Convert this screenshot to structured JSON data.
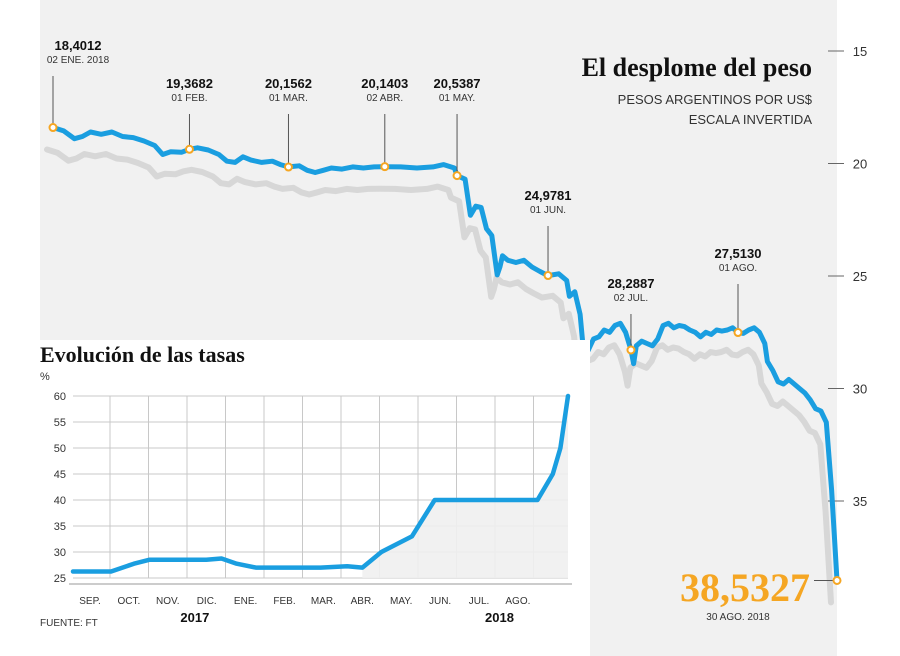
{
  "main_chart": {
    "title": "El desplome del peso",
    "subtitle_line1": "PESOS ARGENTINOS POR US$",
    "subtitle_line2": "ESCALA INVERTIDA",
    "y_axis": {
      "min": 13,
      "max": 39,
      "inverted": true,
      "ticks": [
        15,
        20,
        25,
        30,
        35
      ]
    },
    "colors": {
      "line": "#1a9ee0",
      "shadow": "#d7d7d7",
      "marker": "#f5a623",
      "final_value": "#f5a623",
      "panel_bg": "#f1f1f1"
    },
    "series": [
      [
        0,
        18.4
      ],
      [
        4,
        18.55
      ],
      [
        8,
        18.9
      ],
      [
        11,
        18.8
      ],
      [
        14,
        18.6
      ],
      [
        18,
        18.7
      ],
      [
        22,
        18.6
      ],
      [
        26,
        18.8
      ],
      [
        30,
        18.85
      ],
      [
        34,
        19.0
      ],
      [
        38,
        19.2
      ],
      [
        41,
        19.6
      ],
      [
        44,
        19.48
      ],
      [
        48,
        19.5
      ],
      [
        51,
        19.37
      ],
      [
        54,
        19.3
      ],
      [
        58,
        19.4
      ],
      [
        62,
        19.6
      ],
      [
        65,
        19.9
      ],
      [
        68,
        19.95
      ],
      [
        71,
        19.7
      ],
      [
        74,
        19.85
      ],
      [
        78,
        19.95
      ],
      [
        82,
        19.9
      ],
      [
        85,
        20.05
      ],
      [
        88,
        20.15
      ],
      [
        92,
        20.1
      ],
      [
        95,
        20.3
      ],
      [
        98,
        20.4
      ],
      [
        101,
        20.3
      ],
      [
        104,
        20.2
      ],
      [
        108,
        20.25
      ],
      [
        112,
        20.15
      ],
      [
        116,
        20.2
      ],
      [
        120,
        20.15
      ],
      [
        124,
        20.14
      ],
      [
        130,
        20.15
      ],
      [
        136,
        20.2
      ],
      [
        142,
        20.15
      ],
      [
        146,
        20.05
      ],
      [
        150,
        20.2
      ],
      [
        151,
        20.54
      ],
      [
        154,
        20.7
      ],
      [
        156,
        22.3
      ],
      [
        158,
        21.9
      ],
      [
        160,
        21.95
      ],
      [
        162,
        22.9
      ],
      [
        164,
        23.2
      ],
      [
        166,
        24.95
      ],
      [
        167,
        24.6
      ],
      [
        168,
        24.1
      ],
      [
        170,
        24.3
      ],
      [
        173,
        24.4
      ],
      [
        176,
        24.3
      ],
      [
        179,
        24.6
      ],
      [
        182,
        24.8
      ],
      [
        185,
        24.98
      ],
      [
        189,
        24.9
      ],
      [
        192,
        25.2
      ],
      [
        193,
        25.9
      ],
      [
        195,
        25.7
      ],
      [
        197,
        26.7
      ],
      [
        198,
        28.0
      ],
      [
        200,
        28.3
      ],
      [
        202,
        27.8
      ],
      [
        204,
        27.7
      ],
      [
        206,
        27.4
      ],
      [
        208,
        27.5
      ],
      [
        210,
        27.2
      ],
      [
        212,
        27.1
      ],
      [
        214,
        27.5
      ],
      [
        216,
        28.29
      ],
      [
        217,
        28.9
      ],
      [
        218,
        28.1
      ],
      [
        220,
        27.9
      ],
      [
        222,
        28.0
      ],
      [
        224,
        28.1
      ],
      [
        226,
        27.8
      ],
      [
        228,
        27.2
      ],
      [
        230,
        27.1
      ],
      [
        232,
        27.3
      ],
      [
        234,
        27.2
      ],
      [
        236,
        27.25
      ],
      [
        238,
        27.4
      ],
      [
        240,
        27.5
      ],
      [
        242,
        27.7
      ],
      [
        244,
        27.5
      ],
      [
        246,
        27.6
      ],
      [
        248,
        27.4
      ],
      [
        250,
        27.45
      ],
      [
        252,
        27.4
      ],
      [
        254,
        27.3
      ],
      [
        256,
        27.51
      ],
      [
        258,
        27.55
      ],
      [
        260,
        27.4
      ],
      [
        262,
        27.3
      ],
      [
        264,
        27.5
      ],
      [
        266,
        28.0
      ],
      [
        267,
        28.8
      ],
      [
        269,
        29.2
      ],
      [
        271,
        29.7
      ],
      [
        273,
        29.8
      ],
      [
        275,
        29.6
      ],
      [
        277,
        29.8
      ],
      [
        279,
        30.0
      ],
      [
        281,
        30.2
      ],
      [
        283,
        30.5
      ],
      [
        285,
        30.9
      ],
      [
        287,
        31.0
      ],
      [
        289,
        31.5
      ],
      [
        291,
        34.5
      ],
      [
        292,
        36.5
      ],
      [
        293,
        38.53
      ]
    ],
    "annotations": [
      {
        "value": "18,4012",
        "date": "02 ENE. 2018",
        "x": 0,
        "y": 18.4012
      },
      {
        "value": "19,3682",
        "date": "01 FEB.",
        "x": 51,
        "y": 19.3682
      },
      {
        "value": "20,1562",
        "date": "01 MAR.",
        "x": 88,
        "y": 20.1562
      },
      {
        "value": "20,1403",
        "date": "02 ABR.",
        "x": 124,
        "y": 20.1403
      },
      {
        "value": "20,5387",
        "date": "01 MAY.",
        "x": 151,
        "y": 20.5387
      },
      {
        "value": "24,9781",
        "date": "01 JUN.",
        "x": 185,
        "y": 24.9781
      },
      {
        "value": "28,2887",
        "date": "02 JUL.",
        "x": 216,
        "y": 28.2887
      },
      {
        "value": "27,5130",
        "date": "01 AGO.",
        "x": 256,
        "y": 27.513
      }
    ],
    "final": {
      "value": "38,5327",
      "date": "30 AGO. 2018",
      "x": 293,
      "y": 38.5327
    }
  },
  "rates_chart": {
    "title": "Evolución de las tasas",
    "unit": "%",
    "y_axis": {
      "min": 25,
      "max": 60,
      "ticks": [
        25,
        30,
        35,
        40,
        45,
        50,
        55,
        60
      ]
    },
    "x_axis": {
      "min": 0,
      "max": 13,
      "months": [
        "SEP.",
        "OCT.",
        "NOV.",
        "DIC.",
        "ENE.",
        "FEB.",
        "MAR.",
        "ABR.",
        "MAY.",
        "JUN.",
        "JUL.",
        "AGO."
      ]
    },
    "year_labels": [
      {
        "label": "2017",
        "x": 3.2
      },
      {
        "label": "2018",
        "x": 11.2
      }
    ],
    "colors": {
      "line": "#1a9ee0",
      "fill": "#f0f0f0",
      "grid": "#c8c8c8"
    },
    "series": [
      [
        0,
        26.25
      ],
      [
        1.0,
        26.25
      ],
      [
        1.6,
        27.75
      ],
      [
        2.0,
        28.5
      ],
      [
        2.6,
        28.5
      ],
      [
        3.5,
        28.5
      ],
      [
        3.9,
        28.75
      ],
      [
        4.3,
        27.75
      ],
      [
        4.8,
        27.0
      ],
      [
        5.5,
        27.0
      ],
      [
        6.5,
        27.0
      ],
      [
        7.2,
        27.25
      ],
      [
        7.6,
        27.0
      ],
      [
        8.1,
        30.0
      ],
      [
        8.9,
        33.0
      ],
      [
        9.5,
        40.0
      ],
      [
        10.5,
        40.0
      ],
      [
        11.5,
        40.0
      ],
      [
        12.2,
        40.0
      ],
      [
        12.6,
        45.0
      ],
      [
        12.8,
        50.0
      ],
      [
        13.0,
        60.0
      ]
    ]
  },
  "source": "FUENTE: FT"
}
